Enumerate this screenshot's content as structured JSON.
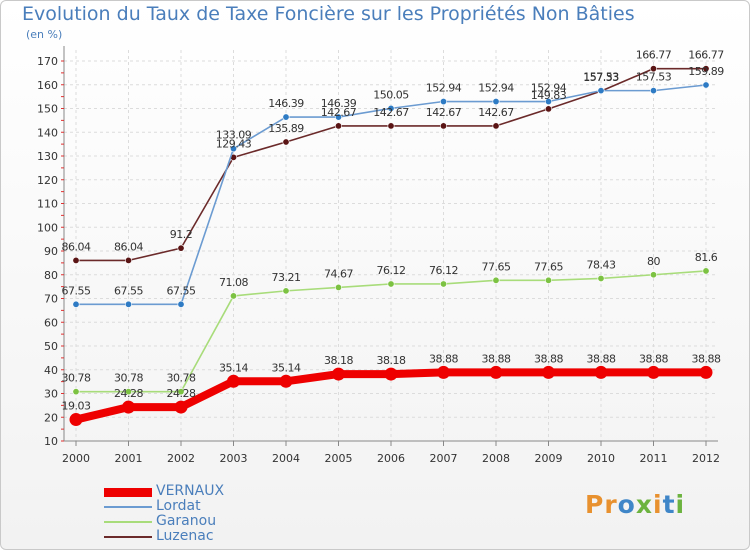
{
  "title": "Evolution du Taux de Taxe Foncière sur les Propriétés Non Bâties",
  "subtitle": "(en %)",
  "logo": {
    "text": "Proxiti",
    "letters": [
      {
        "char": "P",
        "color": "#e8912f"
      },
      {
        "char": "r",
        "color": "#e8912f"
      },
      {
        "char": "o",
        "color": "#3f86c8"
      },
      {
        "char": "x",
        "color": "#6cb33f"
      },
      {
        "char": "i",
        "color": "#e8912f"
      },
      {
        "char": "t",
        "color": "#3f86c8"
      },
      {
        "char": "i",
        "color": "#6cb33f"
      }
    ]
  },
  "chart_data": {
    "type": "line",
    "title": "Evolution du Taux de Taxe Foncière sur les Propriétés Non Bâties",
    "subtitle": "(en %)",
    "xlabel": "",
    "ylabel": "",
    "x": [
      "2000",
      "2001",
      "2002",
      "2003",
      "2004",
      "2005",
      "2006",
      "2007",
      "2008",
      "2009",
      "2010",
      "2011",
      "2012"
    ],
    "ylim": [
      10,
      170
    ],
    "yticks": [
      10,
      20,
      30,
      40,
      50,
      60,
      70,
      80,
      90,
      100,
      110,
      120,
      130,
      140,
      150,
      160,
      170
    ],
    "grid": true,
    "legend_position": "bottom-left",
    "series": [
      {
        "name": "VERNAUX",
        "color": "#ee0000",
        "emphasis": true,
        "values": [
          19.03,
          24.28,
          24.28,
          35.14,
          35.14,
          38.18,
          38.18,
          38.88,
          38.88,
          38.88,
          38.88,
          38.88,
          38.88
        ],
        "labels": [
          "19.03",
          "24.28",
          "24.28",
          "35.14",
          "35.14",
          "38.18",
          "38.18",
          "38.88",
          "38.88",
          "38.88",
          "38.88",
          "38.88",
          "38.88"
        ]
      },
      {
        "name": "Lordat",
        "color": "#6b9bd1",
        "marker_color": "#2e7bc4",
        "values": [
          67.55,
          67.55,
          67.55,
          133.09,
          146.39,
          146.39,
          150.05,
          152.94,
          152.94,
          152.94,
          157.53,
          157.53,
          159.89
        ],
        "labels": [
          "67.55",
          "67.55",
          "67.55",
          "133.09",
          "146.39",
          "146.39",
          "150.05",
          "152.94",
          "152.94",
          "152.94",
          "157.53",
          "157.53",
          "159.89"
        ]
      },
      {
        "name": "Garanou",
        "color": "#a8dc7a",
        "marker_color": "#7cc242",
        "values": [
          30.78,
          30.78,
          30.78,
          71.08,
          73.21,
          74.67,
          76.12,
          76.12,
          77.65,
          77.65,
          78.43,
          80,
          81.6
        ],
        "labels": [
          "30.78",
          "30.78",
          "30.78",
          "71.08",
          "73.21",
          "74.67",
          "76.12",
          "76.12",
          "77.65",
          "77.65",
          "78.43",
          "80",
          "81.6"
        ]
      },
      {
        "name": "Luzenac",
        "color": "#6b2a2a",
        "marker_color": "#5a1414",
        "values": [
          86.04,
          86.04,
          91.2,
          129.43,
          135.89,
          142.67,
          142.67,
          142.67,
          142.67,
          149.83,
          157.33,
          166.77,
          166.77
        ],
        "labels": [
          "86.04",
          "86.04",
          "91.2",
          "129.43",
          "135.89",
          "142.67",
          "142.67",
          "142.67",
          "142.67",
          "149.83",
          "157.33",
          "166.77",
          "166.77"
        ]
      }
    ]
  }
}
